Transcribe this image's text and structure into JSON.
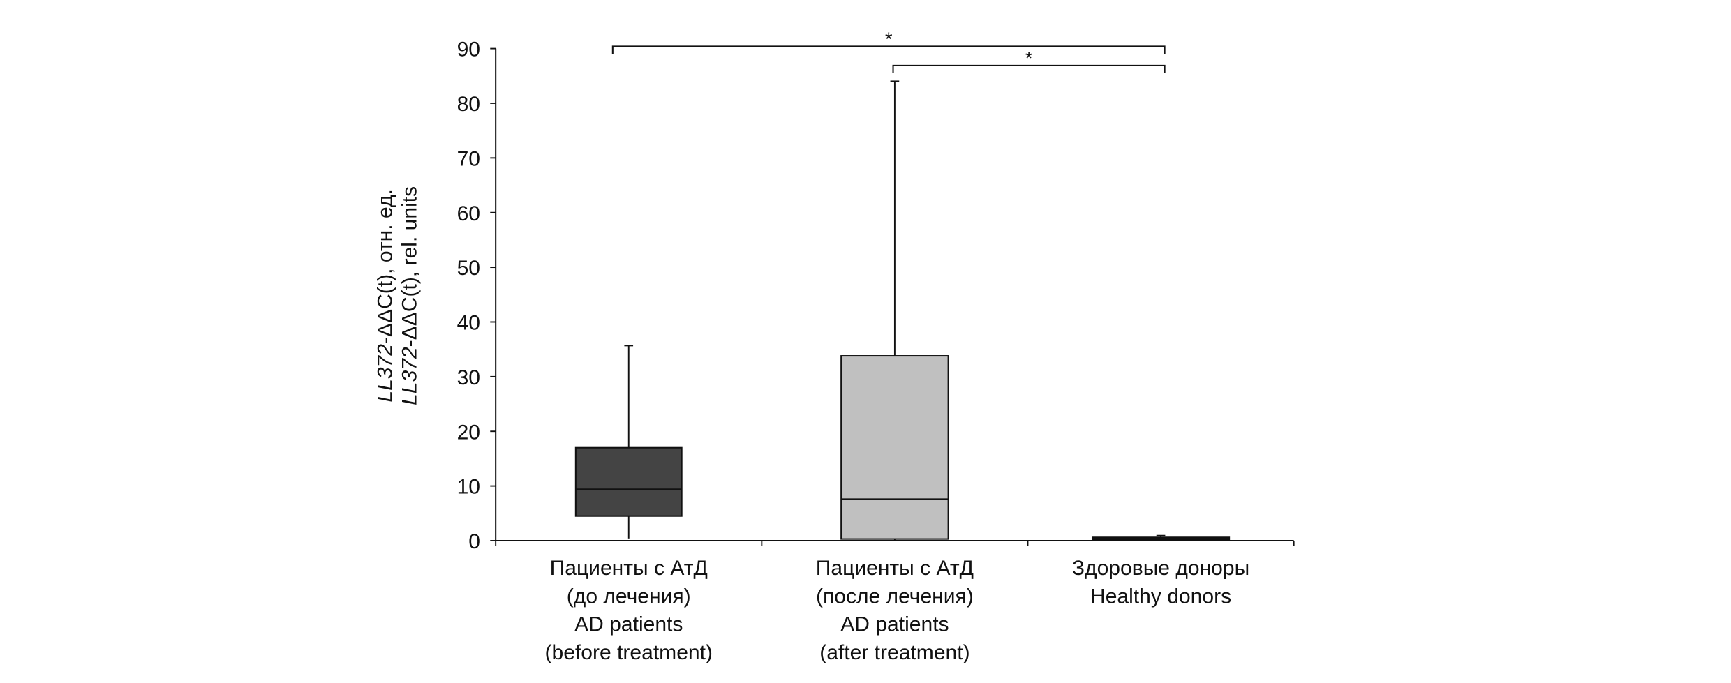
{
  "chart_data": {
    "type": "box",
    "title": "",
    "ylabel_lines": [
      {
        "gene": "LL372",
        "rest": "-ΔΔC(t), отн. ед."
      },
      {
        "gene": "LL372",
        "rest": "-ΔΔC(t), rel. units"
      }
    ],
    "ylim": [
      0,
      90
    ],
    "yticks": [
      "0",
      "10",
      "20",
      "30",
      "40",
      "50",
      "60",
      "70",
      "80",
      "90"
    ],
    "categories": [
      {
        "lines": [
          "Пациенты с АтД",
          "(до лечения)",
          "AD patients",
          "(before treatment)"
        ]
      },
      {
        "lines": [
          "Пациенты с АтД",
          "(после лечения)",
          "AD patients",
          "(after treatment)"
        ]
      },
      {
        "lines": [
          "Здоровые доноры",
          "Healthy donors"
        ]
      }
    ],
    "boxes": [
      {
        "min": 0.4,
        "q1": 4.5,
        "median": 9.4,
        "q3": 17.0,
        "max": 35.7,
        "color": "#444444"
      },
      {
        "min": 0.0,
        "q1": 0.3,
        "median": 7.6,
        "q3": 33.8,
        "max": 84.0,
        "color": "#c0c0c0"
      },
      {
        "min": 0.1,
        "q1": 0.2,
        "median": 0.4,
        "q3": 0.6,
        "max": 0.9,
        "color": "#111111"
      }
    ],
    "significance": [
      {
        "from": 0,
        "to": 2,
        "label": "*",
        "level": 90.4
      },
      {
        "from": 1,
        "to": 2,
        "label": "*",
        "level": 86.9
      }
    ],
    "grid": false,
    "legend": "none"
  }
}
